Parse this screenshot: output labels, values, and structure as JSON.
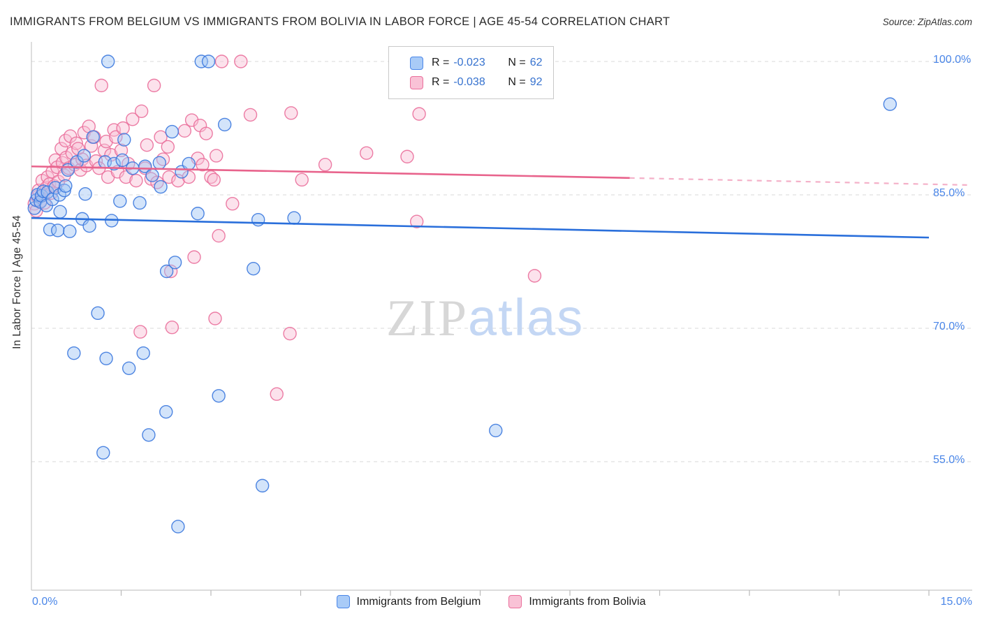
{
  "header": {
    "title": "IMMIGRANTS FROM BELGIUM VS IMMIGRANTS FROM BOLIVIA IN LABOR FORCE | AGE 45-54 CORRELATION CHART",
    "source": "Source: ZipAtlas.com"
  },
  "watermark": {
    "zip": "ZIP",
    "atlas": "atlas"
  },
  "legend_box": {
    "rows": [
      {
        "series": "Immigrants from Belgium",
        "r_label": "R =",
        "r_value": "-0.023",
        "n_label": "N =",
        "n_value": "62",
        "swatch": {
          "fill": "#a9cbf7",
          "border": "#4a86e8"
        }
      },
      {
        "series": "Immigrants from Bolivia",
        "r_label": "R =",
        "r_value": "-0.038",
        "n_label": "N =",
        "n_value": "92",
        "swatch": {
          "fill": "#f9c2d6",
          "border": "#ea6f9b"
        }
      }
    ]
  },
  "bottom_legend": [
    {
      "label": "Immigrants from Belgium",
      "swatch": {
        "fill": "#a9cbf7",
        "border": "#4a86e8"
      }
    },
    {
      "label": "Immigrants from Bolivia",
      "swatch": {
        "fill": "#f9c2d6",
        "border": "#ea6f9b"
      }
    }
  ],
  "chart_data": {
    "type": "scatter",
    "title": "Immigrants from Belgium vs Immigrants from Bolivia — In Labor Force | Age 45-54",
    "x_axis": {
      "min": 0,
      "max": 15,
      "min_label": "0.0%",
      "max_label": "15.0%",
      "unit": "%"
    },
    "y_axis": {
      "title": "In Labor Force | Age 45-54",
      "ticks": [
        {
          "value": 100,
          "label": "100.0%"
        },
        {
          "value": 85,
          "label": "85.0%"
        },
        {
          "value": 70,
          "label": "70.0%"
        },
        {
          "value": 55,
          "label": "55.0%"
        }
      ]
    },
    "series": [
      {
        "name": "Immigrants from Belgium",
        "r": -0.023,
        "n": 62,
        "fill_color": "#9ec3f5",
        "stroke_color": "#3b78de",
        "points": [
          [
            0.05,
            83.5
          ],
          [
            0.08,
            84.4
          ],
          [
            0.1,
            85.0
          ],
          [
            0.15,
            84.2
          ],
          [
            0.17,
            84.9
          ],
          [
            0.2,
            85.4
          ],
          [
            0.25,
            83.8
          ],
          [
            0.27,
            85.3
          ],
          [
            0.31,
            81.1
          ],
          [
            0.35,
            84.5
          ],
          [
            0.4,
            85.8
          ],
          [
            0.44,
            81.0
          ],
          [
            0.47,
            85.0
          ],
          [
            0.48,
            83.1
          ],
          [
            0.55,
            85.5
          ],
          [
            0.57,
            86.0
          ],
          [
            0.61,
            87.8
          ],
          [
            0.64,
            80.9
          ],
          [
            0.71,
            67.2
          ],
          [
            0.76,
            88.7
          ],
          [
            0.85,
            82.3
          ],
          [
            0.88,
            89.4
          ],
          [
            0.9,
            85.1
          ],
          [
            0.97,
            81.5
          ],
          [
            1.03,
            91.5
          ],
          [
            1.11,
            71.7
          ],
          [
            1.2,
            56.0
          ],
          [
            1.23,
            88.7
          ],
          [
            1.25,
            66.6
          ],
          [
            1.28,
            100.0
          ],
          [
            1.34,
            82.1
          ],
          [
            1.38,
            88.5
          ],
          [
            1.48,
            84.3
          ],
          [
            1.52,
            88.9
          ],
          [
            1.55,
            91.2
          ],
          [
            1.63,
            65.5
          ],
          [
            1.69,
            88.0
          ],
          [
            1.81,
            84.1
          ],
          [
            1.87,
            67.2
          ],
          [
            1.9,
            88.2
          ],
          [
            1.96,
            58.0
          ],
          [
            2.02,
            87.2
          ],
          [
            2.14,
            88.6
          ],
          [
            2.16,
            85.9
          ],
          [
            2.25,
            60.6
          ],
          [
            2.26,
            76.4
          ],
          [
            2.35,
            92.1
          ],
          [
            2.4,
            77.4
          ],
          [
            2.45,
            47.7
          ],
          [
            2.51,
            87.6
          ],
          [
            2.63,
            88.5
          ],
          [
            2.78,
            82.9
          ],
          [
            2.84,
            100.0
          ],
          [
            2.96,
            100.0
          ],
          [
            3.13,
            62.4
          ],
          [
            3.23,
            92.9
          ],
          [
            3.71,
            76.7
          ],
          [
            3.79,
            82.2
          ],
          [
            3.86,
            52.3
          ],
          [
            4.39,
            82.4
          ],
          [
            7.76,
            58.5
          ],
          [
            14.35,
            95.2
          ]
        ],
        "trend": {
          "start": [
            0,
            82.4
          ],
          "end": [
            15,
            80.2
          ]
        }
      },
      {
        "name": "Immigrants from Bolivia",
        "r": -0.038,
        "n": 92,
        "fill_color": "#f8bed4",
        "stroke_color": "#ea6f9b",
        "points": [
          [
            0.05,
            84.0
          ],
          [
            0.08,
            83.2
          ],
          [
            0.1,
            84.8
          ],
          [
            0.12,
            85.5
          ],
          [
            0.15,
            84.3
          ],
          [
            0.18,
            86.6
          ],
          [
            0.2,
            85.0
          ],
          [
            0.22,
            84.1
          ],
          [
            0.25,
            85.8
          ],
          [
            0.27,
            87.0
          ],
          [
            0.3,
            86.2
          ],
          [
            0.33,
            85.2
          ],
          [
            0.35,
            87.6
          ],
          [
            0.38,
            86.0
          ],
          [
            0.4,
            88.9
          ],
          [
            0.43,
            88.1
          ],
          [
            0.45,
            86.5
          ],
          [
            0.5,
            90.2
          ],
          [
            0.52,
            88.6
          ],
          [
            0.55,
            87.2
          ],
          [
            0.57,
            91.1
          ],
          [
            0.58,
            89.2
          ],
          [
            0.62,
            88.0
          ],
          [
            0.65,
            91.6
          ],
          [
            0.68,
            89.7
          ],
          [
            0.72,
            88.4
          ],
          [
            0.75,
            90.8
          ],
          [
            0.78,
            90.2
          ],
          [
            0.82,
            87.8
          ],
          [
            0.85,
            89.0
          ],
          [
            0.88,
            92.0
          ],
          [
            0.92,
            88.3
          ],
          [
            0.96,
            92.7
          ],
          [
            1.0,
            90.5
          ],
          [
            1.05,
            91.5
          ],
          [
            1.08,
            88.8
          ],
          [
            1.13,
            88.0
          ],
          [
            1.17,
            97.3
          ],
          [
            1.22,
            90.0
          ],
          [
            1.25,
            91.0
          ],
          [
            1.28,
            87.0
          ],
          [
            1.33,
            89.5
          ],
          [
            1.38,
            92.3
          ],
          [
            1.41,
            91.5
          ],
          [
            1.44,
            87.6
          ],
          [
            1.5,
            90.0
          ],
          [
            1.53,
            92.5
          ],
          [
            1.58,
            87.0
          ],
          [
            1.62,
            88.5
          ],
          [
            1.69,
            93.5
          ],
          [
            1.75,
            86.6
          ],
          [
            1.82,
            69.6
          ],
          [
            1.84,
            94.4
          ],
          [
            1.9,
            88.0
          ],
          [
            1.93,
            90.6
          ],
          [
            2.0,
            86.8
          ],
          [
            2.05,
            97.3
          ],
          [
            2.1,
            86.4
          ],
          [
            2.16,
            91.5
          ],
          [
            2.2,
            89.0
          ],
          [
            2.28,
            90.4
          ],
          [
            2.3,
            87.0
          ],
          [
            2.33,
            76.4
          ],
          [
            2.35,
            70.1
          ],
          [
            2.45,
            86.6
          ],
          [
            2.56,
            92.2
          ],
          [
            2.63,
            87.0
          ],
          [
            2.68,
            93.4
          ],
          [
            2.72,
            78.0
          ],
          [
            2.78,
            89.1
          ],
          [
            2.82,
            92.8
          ],
          [
            2.86,
            88.4
          ],
          [
            2.92,
            91.9
          ],
          [
            3.0,
            87.0
          ],
          [
            3.05,
            86.7
          ],
          [
            3.07,
            71.1
          ],
          [
            3.09,
            89.4
          ],
          [
            3.13,
            80.4
          ],
          [
            3.18,
            100.0
          ],
          [
            3.36,
            84.0
          ],
          [
            3.5,
            100.0
          ],
          [
            3.66,
            94.0
          ],
          [
            4.1,
            62.6
          ],
          [
            4.32,
            69.4
          ],
          [
            4.34,
            94.2
          ],
          [
            4.52,
            86.7
          ],
          [
            4.91,
            88.4
          ],
          [
            5.6,
            89.7
          ],
          [
            6.28,
            89.3
          ],
          [
            6.44,
            82.0
          ],
          [
            6.48,
            94.1
          ],
          [
            8.41,
            75.9
          ]
        ],
        "trend": {
          "start": [
            0,
            88.2
          ],
          "end": [
            10,
            86.9
          ],
          "dashed_end": [
            15.7,
            86.1
          ]
        }
      }
    ],
    "trend_lines": [
      {
        "series": "Immigrants from Belgium",
        "color": "#2a6fdb",
        "start": [
          0,
          82.4
        ],
        "solid_end": [
          15,
          80.2
        ]
      },
      {
        "series": "Immigrants from Bolivia",
        "color": "#e8638c",
        "dashed_color": "#f19cba",
        "start": [
          0,
          88.2
        ],
        "solid_end": [
          10,
          86.9
        ],
        "dashed_end": [
          15.7,
          86.1
        ]
      }
    ],
    "grid": "horizontal-dashed",
    "legend_position": "bottom-center"
  }
}
